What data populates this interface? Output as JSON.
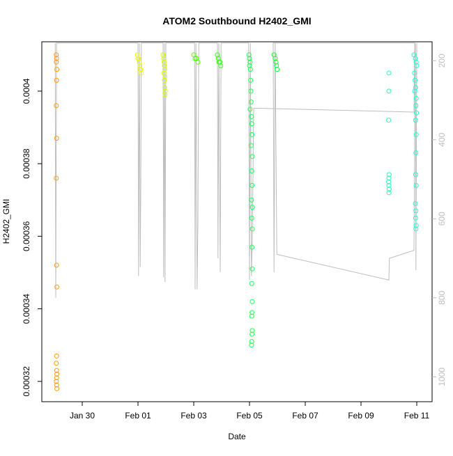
{
  "chart_data": {
    "type": "scatter",
    "title": "ATOM2 Southbound H2402_GMI",
    "xlabel": "Date",
    "ylabel": "H2402_GMI",
    "xlim": [
      28.55,
      42.55
    ],
    "xticks": [
      {
        "value": 30,
        "label": "Jan 30"
      },
      {
        "value": 32,
        "label": "Feb 01"
      },
      {
        "value": 34,
        "label": "Feb 03"
      },
      {
        "value": 36,
        "label": "Feb 05"
      },
      {
        "value": 38,
        "label": "Feb 07"
      },
      {
        "value": 40,
        "label": "Feb 09"
      },
      {
        "value": 42,
        "label": "Feb 11"
      }
    ],
    "ylim": [
      0.0003144,
      0.0004136
    ],
    "yticks": [
      0.00032,
      0.00034,
      0.00036,
      0.00038,
      0.0004
    ],
    "y2lim": [
      1063,
      152
    ],
    "y2ticks": [
      200,
      400,
      600,
      800,
      1000
    ],
    "y2color": "#bebebe",
    "series": [
      {
        "type": "line",
        "axis": "y2",
        "color": "#bebebe",
        "x": [
          29.03,
          29.05,
          29.08,
          32.0,
          32.02,
          32.05,
          32.08,
          32.1,
          32.12,
          32.9,
          32.92,
          32.95,
          32.97,
          33.0,
          34.03,
          34.05,
          34.08,
          34.12,
          34.15,
          34.18,
          34.85,
          34.87,
          34.9,
          34.95,
          34.98,
          35.97,
          36.0,
          36.03,
          36.07,
          36.1,
          36.15,
          41.9,
          41.93,
          36.85,
          36.88,
          36.92,
          36.98,
          41.0,
          41.02,
          41.9,
          41.95,
          41.97,
          42.0
        ],
        "values": [
          155,
          800,
          155,
          155,
          745,
          155,
          722,
          530,
          155,
          155,
          748,
          155,
          760,
          155,
          155,
          778,
          155,
          778,
          611,
          155,
          155,
          700,
          155,
          735,
          155,
          155,
          755,
          155,
          745,
          660,
          320,
          330,
          155,
          155,
          735,
          155,
          690,
          755,
          700,
          680,
          155,
          730,
          155
        ]
      },
      {
        "type": "scatter",
        "color": "#ff9a1a",
        "x": [
          29.07,
          29.08,
          29.07,
          29.09,
          29.08,
          29.07,
          29.08,
          29.07,
          29.08,
          29.09,
          29.08,
          29.07,
          29.08,
          29.09,
          29.08,
          29.07,
          29.08,
          29.09
        ],
        "values": [
          0.00041,
          0.000409,
          0.000408,
          0.000406,
          0.000403,
          0.000396,
          0.000387,
          0.000376,
          0.000352,
          0.000346,
          0.000327,
          0.000325,
          0.000323,
          0.000322,
          0.000321,
          0.00032,
          0.000319,
          0.000318
        ]
      },
      {
        "type": "scatter",
        "color": "#eeff00",
        "x": [
          31.98,
          32.0,
          32.02,
          32.05,
          32.07,
          32.09,
          32.1,
          32.12
        ],
        "values": [
          0.00041,
          0.000409,
          0.000409,
          0.000408,
          0.000407,
          0.000406,
          0.000406,
          0.000405
        ]
      },
      {
        "type": "scatter",
        "color": "#d4ff00",
        "x": [
          32.9,
          32.92,
          32.94,
          32.95,
          32.96,
          32.93,
          32.97,
          32.95,
          32.96,
          32.98,
          32.97
        ],
        "values": [
          0.00041,
          0.000409,
          0.000408,
          0.000407,
          0.000406,
          0.000405,
          0.000404,
          0.000403,
          0.000401,
          0.0004,
          0.000399
        ]
      },
      {
        "type": "scatter",
        "color": "#55ff00",
        "x": [
          34.0,
          34.05,
          34.1,
          34.15
        ],
        "values": [
          0.00041,
          0.000409,
          0.000409,
          0.000408
        ]
      },
      {
        "type": "scatter",
        "color": "#33ff10",
        "x": [
          34.85,
          34.88,
          34.9,
          34.94,
          34.97
        ],
        "values": [
          0.00041,
          0.000409,
          0.000408,
          0.000408,
          0.000407
        ]
      },
      {
        "type": "scatter",
        "color": "#22ff55",
        "x": [
          35.98,
          36.0,
          36.02,
          36.0,
          36.03,
          36.04,
          36.05,
          36.06,
          36.02,
          36.07,
          36.08,
          36.09,
          36.06,
          36.1,
          36.08,
          36.09,
          36.07,
          36.1,
          36.08,
          36.1,
          36.09,
          36.1,
          36.08,
          36.1,
          36.09,
          36.08,
          36.1,
          36.09,
          36.08,
          36.07
        ],
        "values": [
          0.00041,
          0.000409,
          0.000408,
          0.000407,
          0.000406,
          0.000403,
          0.0004,
          0.000397,
          0.000395,
          0.000393,
          0.000391,
          0.000388,
          0.000385,
          0.000382,
          0.000378,
          0.000374,
          0.00037,
          0.000368,
          0.000365,
          0.000362,
          0.000357,
          0.000351,
          0.000347,
          0.000342,
          0.000339,
          0.000338,
          0.000334,
          0.000333,
          0.000331,
          0.00033
        ]
      },
      {
        "type": "scatter",
        "color": "#11ff33",
        "x": [
          36.88,
          36.92,
          36.95,
          36.97,
          36.99
        ],
        "values": [
          0.00041,
          0.000409,
          0.000408,
          0.000407,
          0.000406
        ]
      },
      {
        "type": "scatter",
        "color": "#22ffbb",
        "x": [
          41.0,
          41.0,
          40.99,
          41.01,
          41.0,
          40.99,
          41.0,
          41.01,
          41.0
        ],
        "values": [
          0.000405,
          0.0004,
          0.000392,
          0.000377,
          0.000376,
          0.000375,
          0.000374,
          0.000373,
          0.000372
        ]
      },
      {
        "type": "scatter",
        "color": "#22ffd0",
        "x": [
          41.9,
          41.95,
          41.98,
          42.0,
          41.92,
          41.94,
          41.96,
          41.93,
          41.98,
          41.97,
          41.99,
          41.96,
          41.98,
          41.97,
          41.96,
          41.98,
          41.95,
          41.97,
          41.96,
          41.98,
          41.97
        ],
        "values": [
          0.00041,
          0.000409,
          0.000408,
          0.000407,
          0.000405,
          0.000403,
          0.000401,
          0.0004,
          0.000398,
          0.000396,
          0.000394,
          0.000392,
          0.000388,
          0.000383,
          0.000377,
          0.000374,
          0.000369,
          0.000367,
          0.000365,
          0.000363,
          0.000362
        ]
      }
    ]
  }
}
